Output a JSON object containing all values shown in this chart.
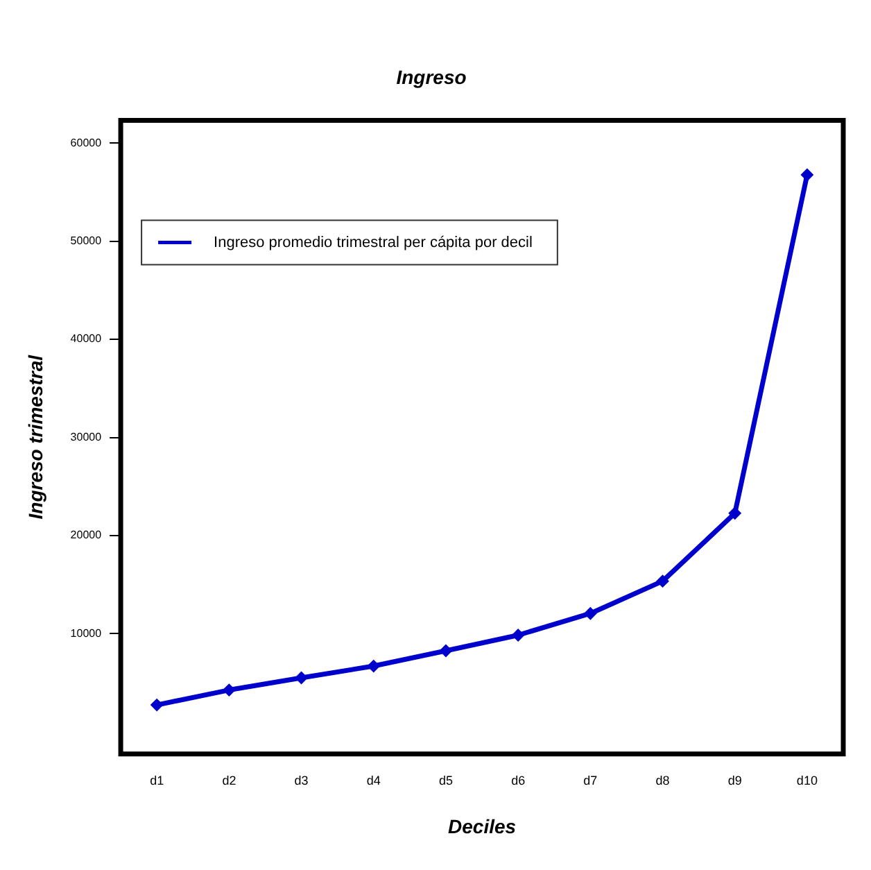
{
  "chart_data": {
    "type": "line",
    "title": "Ingreso",
    "xlabel": "Deciles",
    "ylabel": "Ingreso trimestral",
    "categories": [
      "d1",
      "d2",
      "d3",
      "d4",
      "d5",
      "d6",
      "d7",
      "d8",
      "d9",
      "d10"
    ],
    "series": [
      {
        "name": "Ingreso promedio trimestral per cápita por decil",
        "color": "#0000cc",
        "values": [
          2750,
          4270,
          5510,
          6710,
          8270,
          9860,
          12070,
          15360,
          22280,
          56760
        ]
      }
    ],
    "ylim": [
      -2250,
      62300
    ],
    "yticks": [
      10000,
      20000,
      30000,
      40000,
      50000,
      60000
    ],
    "grid": false,
    "legend": "top left",
    "marker": "diamond",
    "line_style": "solid"
  }
}
